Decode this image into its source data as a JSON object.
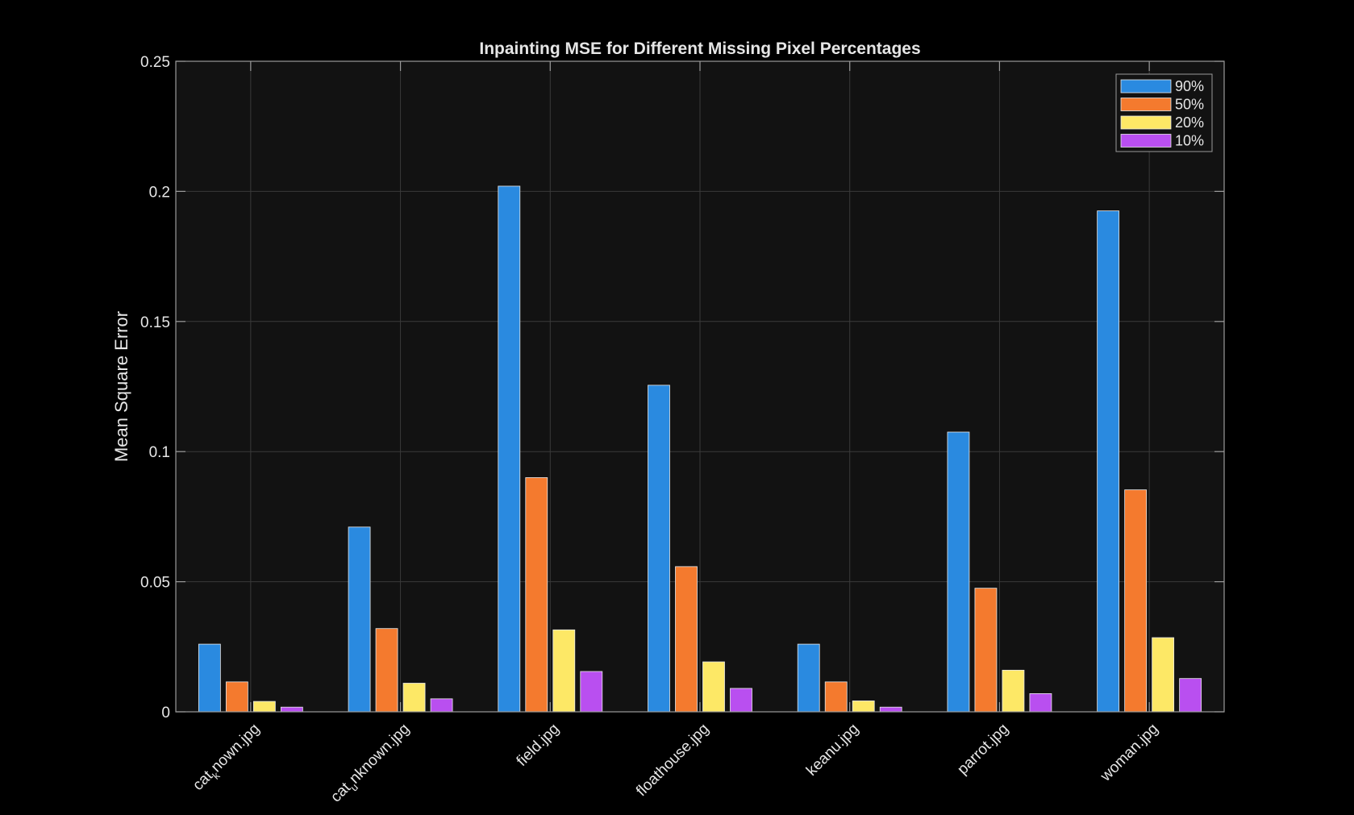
{
  "chart_data": {
    "type": "bar",
    "title": "Inpainting MSE for Different Missing Pixel Percentages",
    "xlabel": "",
    "ylabel": "Mean Square Error",
    "ylim": [
      0,
      0.25
    ],
    "yticks": [
      0,
      0.05,
      0.1,
      0.15,
      0.2,
      0.25
    ],
    "ytick_labels": [
      "0",
      "0.05",
      "0.1",
      "0.15",
      "0.2",
      "0.25"
    ],
    "categories": [
      {
        "base": "cat",
        "sub": "k",
        "rest": "nown.jpg"
      },
      {
        "base": "cat",
        "sub": "u",
        "rest": "nknown.jpg"
      },
      {
        "base": "field.jpg",
        "sub": "",
        "rest": ""
      },
      {
        "base": "floathouse.jpg",
        "sub": "",
        "rest": ""
      },
      {
        "base": "keanu.jpg",
        "sub": "",
        "rest": ""
      },
      {
        "base": "parrot.jpg",
        "sub": "",
        "rest": ""
      },
      {
        "base": "woman.jpg",
        "sub": "",
        "rest": ""
      }
    ],
    "series": [
      {
        "name": "90%",
        "color": "#2a8ae0",
        "values": [
          0.026,
          0.071,
          0.202,
          0.1255,
          0.026,
          0.1075,
          0.1925
        ]
      },
      {
        "name": "50%",
        "color": "#f47a2e",
        "values": [
          0.0115,
          0.032,
          0.09,
          0.0558,
          0.0115,
          0.0475,
          0.0853
        ]
      },
      {
        "name": "20%",
        "color": "#fde866",
        "values": [
          0.004,
          0.011,
          0.0315,
          0.0192,
          0.0042,
          0.016,
          0.0285
        ]
      },
      {
        "name": "10%",
        "color": "#b94ff0",
        "values": [
          0.0018,
          0.005,
          0.0155,
          0.009,
          0.0018,
          0.007,
          0.0128
        ]
      }
    ],
    "grid": true,
    "legend_position": "top-right",
    "colors": {
      "figure_bg": "#000000",
      "axes_bg": "#121212",
      "grid": "#3a3a3a",
      "axes_edge": "#9a9a9a",
      "text": "#e6e6e6",
      "bar_edge": "#e8e8e8"
    }
  }
}
